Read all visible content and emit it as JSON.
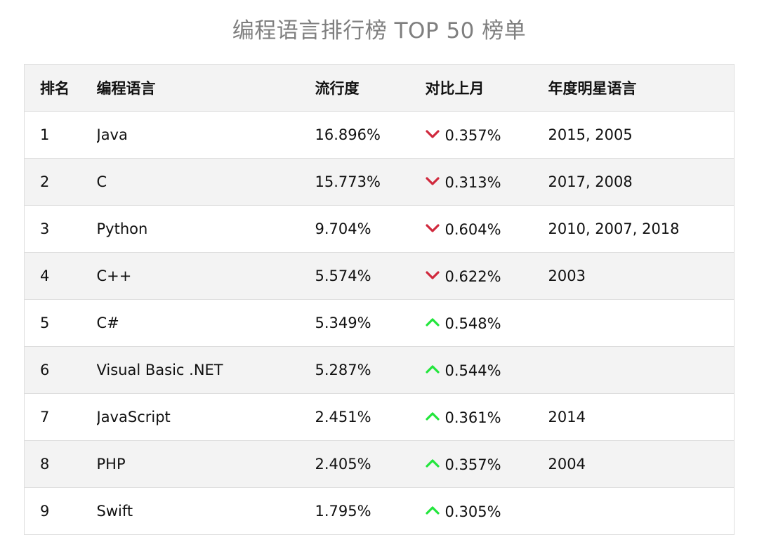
{
  "title": "编程语言排行榜 TOP 50 榜单",
  "colors": {
    "down": "#d0293d",
    "up": "#22e63c",
    "title": "#7f7f7f",
    "stripe": "#f3f3f3"
  },
  "table": {
    "headers": {
      "rank": "排名",
      "language": "编程语言",
      "popularity": "流行度",
      "change": "对比上月",
      "star_years": "年度明星语言"
    },
    "rows": [
      {
        "rank": "1",
        "language": "Java",
        "popularity": "16.896%",
        "trend": "down",
        "trend_icon": "chevron-down-icon",
        "change": "0.357%",
        "star_years": "2015, 2005"
      },
      {
        "rank": "2",
        "language": "C",
        "popularity": "15.773%",
        "trend": "down",
        "trend_icon": "chevron-down-icon",
        "change": "0.313%",
        "star_years": "2017, 2008"
      },
      {
        "rank": "3",
        "language": "Python",
        "popularity": "9.704%",
        "trend": "down",
        "trend_icon": "chevron-down-icon",
        "change": "0.604%",
        "star_years": "2010, 2007, 2018"
      },
      {
        "rank": "4",
        "language": "C++",
        "popularity": "5.574%",
        "trend": "down",
        "trend_icon": "chevron-down-icon",
        "change": "0.622%",
        "star_years": "2003"
      },
      {
        "rank": "5",
        "language": "C#",
        "popularity": "5.349%",
        "trend": "up",
        "trend_icon": "chevron-up-icon",
        "change": "0.548%",
        "star_years": ""
      },
      {
        "rank": "6",
        "language": "Visual Basic .NET",
        "popularity": "5.287%",
        "trend": "up",
        "trend_icon": "chevron-up-icon",
        "change": "0.544%",
        "star_years": ""
      },
      {
        "rank": "7",
        "language": "JavaScript",
        "popularity": "2.451%",
        "trend": "up",
        "trend_icon": "chevron-up-icon",
        "change": "0.361%",
        "star_years": "2014"
      },
      {
        "rank": "8",
        "language": "PHP",
        "popularity": "2.405%",
        "trend": "up",
        "trend_icon": "chevron-up-icon",
        "change": "0.357%",
        "star_years": "2004"
      },
      {
        "rank": "9",
        "language": "Swift",
        "popularity": "1.795%",
        "trend": "up",
        "trend_icon": "chevron-up-icon",
        "change": "0.305%",
        "star_years": ""
      }
    ]
  }
}
